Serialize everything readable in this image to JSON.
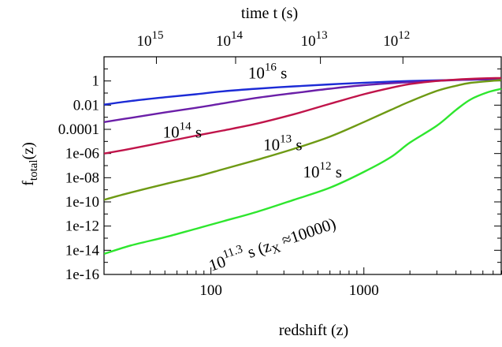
{
  "chart_data": {
    "type": "line",
    "title": "",
    "xlabel": "redshift (z)",
    "ylabel": {
      "base": "f",
      "subscript": "total",
      "suffix": "(z)"
    },
    "top_xlabel": "time t (s)",
    "xscale": "log",
    "yscale": "log",
    "xlim": [
      20,
      8000
    ],
    "ylim": [
      1e-16,
      100
    ],
    "grid": false,
    "x_ticks": [
      {
        "value": 100,
        "label": "100"
      },
      {
        "value": 1000,
        "label": "1000"
      }
    ],
    "y_ticks": [
      {
        "value": 1,
        "label": "1"
      },
      {
        "value": 0.01,
        "label": "0.01"
      },
      {
        "value": 0.0001,
        "label": "0.0001"
      },
      {
        "value": 1e-06,
        "label": "1e-06"
      },
      {
        "value": 1e-08,
        "label": "1e-08"
      },
      {
        "value": 1e-10,
        "label": "1e-10"
      },
      {
        "value": 1e-12,
        "label": "1e-12"
      },
      {
        "value": 1e-14,
        "label": "1e-14"
      },
      {
        "value": 1e-16,
        "label": "1e-16"
      }
    ],
    "top_ticks": [
      {
        "z": 44,
        "base": "10",
        "exp": "15"
      },
      {
        "z": 145,
        "base": "10",
        "exp": "14"
      },
      {
        "z": 520,
        "base": "10",
        "exp": "13"
      },
      {
        "z": 1800,
        "base": "10",
        "exp": "12"
      }
    ],
    "series": [
      {
        "name": "10^16 s",
        "color": "#1c2bd6",
        "points": [
          [
            20,
            0.011
          ],
          [
            30,
            0.022
          ],
          [
            50,
            0.045
          ],
          [
            80,
            0.08
          ],
          [
            120,
            0.14
          ],
          [
            200,
            0.23
          ],
          [
            350,
            0.36
          ],
          [
            600,
            0.52
          ],
          [
            1000,
            0.72
          ],
          [
            2000,
            1.0
          ],
          [
            4000,
            1.22
          ],
          [
            7900,
            1.35
          ]
        ]
      },
      {
        "name": "10^14 s",
        "color": "#6b1fa8",
        "points": [
          [
            20,
            0.0004
          ],
          [
            30,
            0.0009
          ],
          [
            50,
            0.0025
          ],
          [
            80,
            0.006
          ],
          [
            120,
            0.014
          ],
          [
            200,
            0.04
          ],
          [
            350,
            0.1
          ],
          [
            600,
            0.23
          ],
          [
            1000,
            0.45
          ],
          [
            2000,
            0.8
          ],
          [
            4000,
            1.2
          ],
          [
            7900,
            1.5
          ]
        ]
      },
      {
        "name": "10^13 s",
        "color": "#c0144a",
        "points": [
          [
            20,
            1e-06
          ],
          [
            30,
            2.5e-06
          ],
          [
            50,
            9e-06
          ],
          [
            80,
            3e-05
          ],
          [
            120,
            8e-05
          ],
          [
            200,
            0.0003
          ],
          [
            350,
            0.0018
          ],
          [
            600,
            0.013
          ],
          [
            1000,
            0.08
          ],
          [
            1500,
            0.27
          ],
          [
            2000,
            0.55
          ],
          [
            3000,
            1.0
          ],
          [
            5000,
            1.5
          ],
          [
            7900,
            1.8
          ]
        ]
      },
      {
        "name": "10^12 s",
        "color": "#6e9a14",
        "points": [
          [
            20,
            1.5e-10
          ],
          [
            30,
            6e-10
          ],
          [
            50,
            3e-09
          ],
          [
            80,
            1.2e-08
          ],
          [
            120,
            5e-08
          ],
          [
            200,
            3e-07
          ],
          [
            350,
            2.5e-06
          ],
          [
            600,
            2.5e-05
          ],
          [
            1000,
            0.0004
          ],
          [
            1500,
            0.004
          ],
          [
            2000,
            0.02
          ],
          [
            3000,
            0.15
          ],
          [
            4000,
            0.4
          ],
          [
            5000,
            0.7
          ],
          [
            7900,
            1.2
          ]
        ]
      },
      {
        "name": "10^11.3 s (z_X ≈10000)",
        "color": "#2ee62e",
        "points": [
          [
            20,
            5e-15
          ],
          [
            30,
            2.5e-14
          ],
          [
            50,
            1.2e-13
          ],
          [
            80,
            6e-13
          ],
          [
            120,
            2.5e-12
          ],
          [
            200,
            1.5e-11
          ],
          [
            350,
            1.5e-10
          ],
          [
            600,
            1.5e-09
          ],
          [
            1000,
            3e-08
          ],
          [
            1500,
            5e-07
          ],
          [
            2000,
            8e-06
          ],
          [
            3000,
            0.0002
          ],
          [
            4000,
            0.004
          ],
          [
            5000,
            0.03
          ],
          [
            6500,
            0.12
          ],
          [
            7900,
            0.22
          ]
        ]
      }
    ],
    "annotations": [
      {
        "base": "10",
        "exp": "16",
        "unit": " s",
        "series": 0
      },
      {
        "base": "10",
        "exp": "14",
        "unit": " s",
        "series": 1
      },
      {
        "base": "10",
        "exp": "13",
        "unit": " s",
        "series": 2
      },
      {
        "base": "10",
        "exp": "12",
        "unit": " s",
        "series": 3
      },
      {
        "base": "10",
        "exp": "11.3",
        "unit": " s (z",
        "sub": "X",
        "tail": " ≈10000)",
        "series": 4,
        "rotate": -19
      }
    ]
  }
}
